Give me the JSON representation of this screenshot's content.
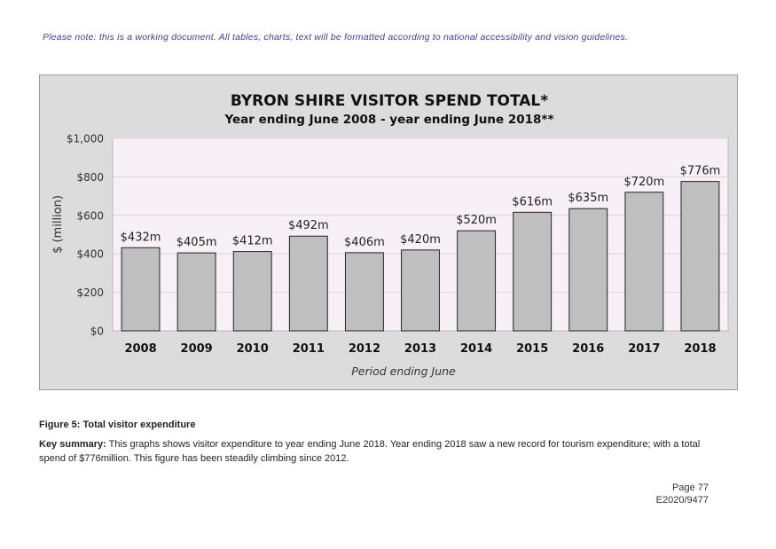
{
  "note": "Please note: this is a working document. All tables, charts, text will be formatted according to national accessibility and vision guidelines.",
  "chart_data": {
    "type": "bar",
    "title": "BYRON SHIRE VISITOR SPEND TOTAL*",
    "subtitle": "Year ending June 2008 - year ending June 2018**",
    "xlabel": "Period ending June",
    "ylabel": "$ (million)",
    "categories": [
      "2008",
      "2009",
      "2010",
      "2011",
      "2012",
      "2013",
      "2014",
      "2015",
      "2016",
      "2017",
      "2018"
    ],
    "values": [
      432,
      405,
      412,
      492,
      406,
      420,
      520,
      616,
      635,
      720,
      776
    ],
    "data_labels": [
      "$432m",
      "$405m",
      "$412m",
      "$492m",
      "$406m",
      "$420m",
      "$520m",
      "$616m",
      "$635m",
      "$720m",
      "$776m"
    ],
    "ylim": [
      0,
      1000
    ],
    "yticks": [
      0,
      200,
      400,
      600,
      800,
      1000
    ],
    "ytick_labels": [
      "$0",
      "$200",
      "$400",
      "$600",
      "$800",
      "$1,000"
    ],
    "grid": true,
    "colors": {
      "bar": "#bfbfbf",
      "plot_bg": "#f7f1f7",
      "frame_bg": "#dcdcdc"
    }
  },
  "caption": "Figure 5: Total visitor expenditure",
  "summary": {
    "label": "Key summary:",
    "text": " This graphs shows visitor expenditure to year ending June 2018. Year ending 2018 saw a new record for tourism expenditure; with a total spend of $776million. This figure has been steadily climbing since 2012."
  },
  "page": {
    "page_number": "Page 77",
    "doc_ref": "E2020/9477"
  }
}
